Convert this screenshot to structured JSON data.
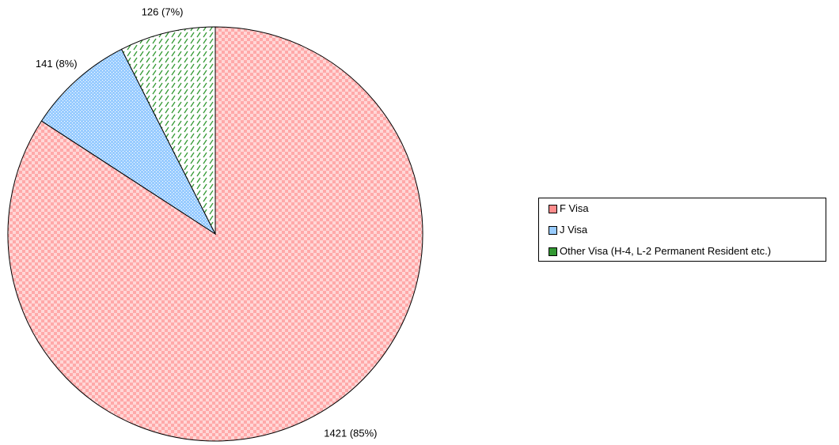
{
  "chart_data": {
    "type": "pie",
    "categories": [
      "F Visa",
      "J Visa",
      "Other Visa (H-4, L-2 Permanent Resident etc.)"
    ],
    "values": [
      1421,
      141,
      126
    ],
    "value_labels": [
      "1421 (85%)",
      "141 (8%)",
      "126 (7%)"
    ],
    "colors": [
      "#ff8c8c",
      "#99ccff",
      "#339933"
    ],
    "legend": "right"
  }
}
